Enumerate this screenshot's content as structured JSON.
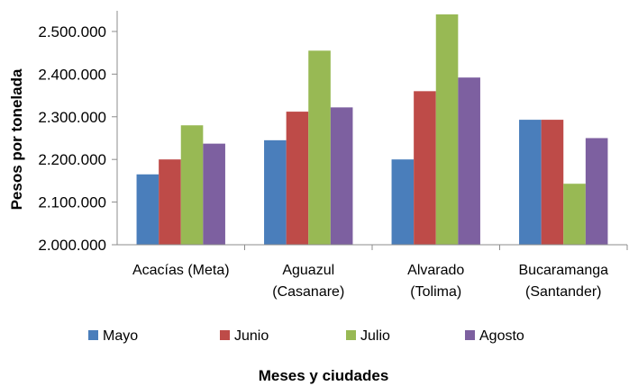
{
  "chart_data": {
    "type": "bar",
    "categories": [
      [
        "Acacías (Meta)"
      ],
      [
        "Aguazul",
        "(Casanare)"
      ],
      [
        "Alvarado",
        "(Tolima)"
      ],
      [
        "Bucaramanga",
        "(Santander)"
      ]
    ],
    "series": [
      {
        "name": "Mayo",
        "color": "#4a7ebb",
        "values": [
          2165000,
          2245000,
          2200000,
          2293000
        ]
      },
      {
        "name": "Junio",
        "color": "#be4b48",
        "values": [
          2200000,
          2312000,
          2360000,
          2293000
        ]
      },
      {
        "name": "Julio",
        "color": "#98b954",
        "values": [
          2280000,
          2455000,
          2540000,
          2143000
        ]
      },
      {
        "name": "Agosto",
        "color": "#7d60a0",
        "values": [
          2237000,
          2322000,
          2392000,
          2250000
        ]
      }
    ],
    "yticks": [
      "2.000.000",
      "2.100.000",
      "2.200.000",
      "2.300.000",
      "2.400.000",
      "2.500.000"
    ],
    "ylim": [
      2000000,
      2540000
    ],
    "xlabel": "Meses y ciudades",
    "ylabel": "Pesos por tonelada",
    "grid": false,
    "legend_position": "bottom"
  }
}
